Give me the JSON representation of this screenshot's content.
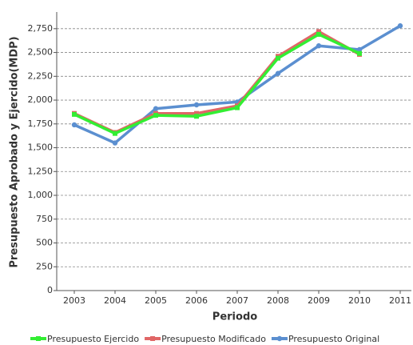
{
  "chart_data": {
    "type": "line",
    "x_label": "Periodo",
    "y_label": "Presupuesto Aprobado y Ejercido(MDP)",
    "categories": [
      "2003",
      "2004",
      "2005",
      "2006",
      "2007",
      "2008",
      "2009",
      "2010",
      "2011"
    ],
    "series": [
      {
        "name": "Presupuesto Ejercido",
        "color": "#33ee33",
        "marker": "square",
        "values": [
          1850,
          1650,
          1840,
          1830,
          1920,
          2440,
          2690,
          2490,
          null
        ]
      },
      {
        "name": "Presupuesto Modificado",
        "color": "#e06666",
        "marker": "square",
        "values": [
          1860,
          1660,
          1860,
          1860,
          1940,
          2460,
          2720,
          2480,
          null
        ]
      },
      {
        "name": "Presupuesto Original",
        "color": "#5b8fd0",
        "marker": "circle",
        "values": [
          1740,
          1550,
          1910,
          1950,
          1980,
          2280,
          2570,
          2530,
          2780
        ]
      }
    ],
    "ylim": [
      0,
      2925
    ],
    "yticks": [
      0,
      250,
      500,
      750,
      {
        "value": 1000,
        "label": "1,000"
      },
      {
        "value": 1250,
        "label": "1,250"
      },
      {
        "value": 1500,
        "label": "1,500"
      },
      {
        "value": 1750,
        "label": "1,750"
      },
      {
        "value": 2000,
        "label": "2,000"
      },
      {
        "value": 2250,
        "label": "2,250"
      },
      {
        "value": 2500,
        "label": "2,500"
      },
      {
        "value": 2750,
        "label": "2,750"
      }
    ],
    "grid": true
  }
}
